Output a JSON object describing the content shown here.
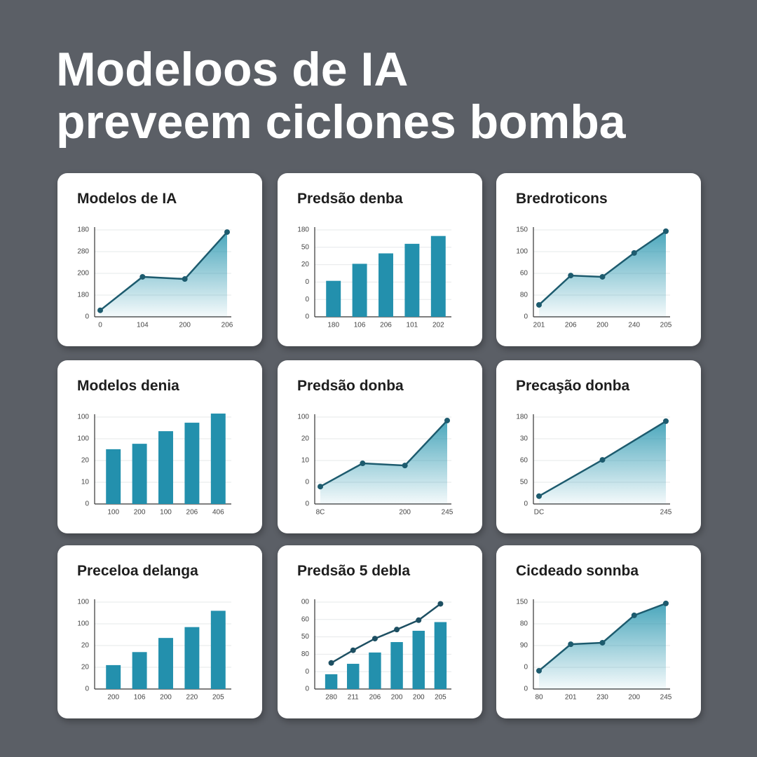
{
  "headline": [
    "Modeloos de IA",
    "preveem ciclones bomba"
  ],
  "chart_data": [
    {
      "type": "line",
      "title": "Modelos de IA",
      "y_labels": [
        "0",
        "180",
        "200",
        "280",
        "180"
      ],
      "categories": [
        "0",
        "104",
        "200",
        "206"
      ],
      "values": [
        0.3,
        1.84,
        1.74,
        3.9
      ],
      "color": "#1d5b6e",
      "fill": "#2a97b0"
    },
    {
      "type": "bar",
      "title": "Predsão denba",
      "y_labels": [
        "0",
        "0",
        "0",
        "20",
        "50",
        "180"
      ],
      "categories": [
        "180",
        "106",
        "206",
        "101",
        "202"
      ],
      "values": [
        2.07,
        3.05,
        3.65,
        4.2,
        4.65
      ],
      "color": "#2390ad"
    },
    {
      "type": "line",
      "title": "Bredroticons",
      "y_labels": [
        "0",
        "80",
        "60",
        "100",
        "150"
      ],
      "categories": [
        "201",
        "206",
        "200",
        "240",
        "205"
      ],
      "values": [
        0.55,
        1.9,
        1.84,
        2.94,
        3.94
      ],
      "color": "#1d5b6e",
      "fill": "#2a97b0"
    },
    {
      "type": "bar",
      "title": "Modelos denia",
      "y_labels": [
        "0",
        "10",
        "20",
        "100",
        "100"
      ],
      "categories": [
        "100",
        "200",
        "100",
        "206",
        "406"
      ],
      "values": [
        2.52,
        2.77,
        3.35,
        3.74,
        4.16
      ],
      "color": "#2390ad"
    },
    {
      "type": "line",
      "title": "Predsão donba",
      "y_labels": [
        "0",
        "0",
        "10",
        "20",
        "100"
      ],
      "categories": [
        "8C",
        null,
        "200",
        "245"
      ],
      "values": [
        0.8,
        1.87,
        1.77,
        3.84
      ],
      "color": "#1d5b6e",
      "fill": "#2a97b0"
    },
    {
      "type": "line",
      "title": "Precaşão donba",
      "y_labels": [
        "0",
        "50",
        "60",
        "30",
        "180"
      ],
      "categories": [
        "DC",
        null,
        "245"
      ],
      "values": [
        0.36,
        2.03,
        3.81
      ],
      "color": "#1d5b6e",
      "fill": "#2a97b0"
    },
    {
      "type": "bar",
      "title": "Preceloa delanga",
      "y_labels": [
        "0",
        "20",
        "20",
        "100",
        "100"
      ],
      "categories": [
        "200",
        "106",
        "200",
        "220",
        "205"
      ],
      "values": [
        1.1,
        1.7,
        2.35,
        2.85,
        3.6
      ],
      "color": "#2390ad"
    },
    {
      "type": "bar_line",
      "title": "Predsão 5 debla",
      "y_labels": [
        "0",
        "0",
        "80",
        "50",
        "60",
        "00"
      ],
      "categories": [
        "280",
        "211",
        "206",
        "200",
        "200",
        "205"
      ],
      "series": [
        {
          "type": "bar",
          "values": [
            0.85,
            1.45,
            2.1,
            2.7,
            3.35,
            3.85
          ],
          "color": "#2390ad"
        },
        {
          "type": "line",
          "values": [
            1.5,
            2.23,
            2.9,
            3.42,
            3.96,
            4.9
          ],
          "color": "#1d4f62"
        }
      ]
    },
    {
      "type": "line",
      "title": "Cicdeado sonnba",
      "y_labels": [
        "0",
        "0",
        "90",
        "80",
        "150"
      ],
      "categories": [
        "80",
        "201",
        "230",
        "200",
        "245"
      ],
      "values": [
        0.84,
        2.06,
        2.13,
        3.39,
        3.94
      ],
      "color": "#1d5b6e",
      "fill": "#2a97b0"
    }
  ]
}
